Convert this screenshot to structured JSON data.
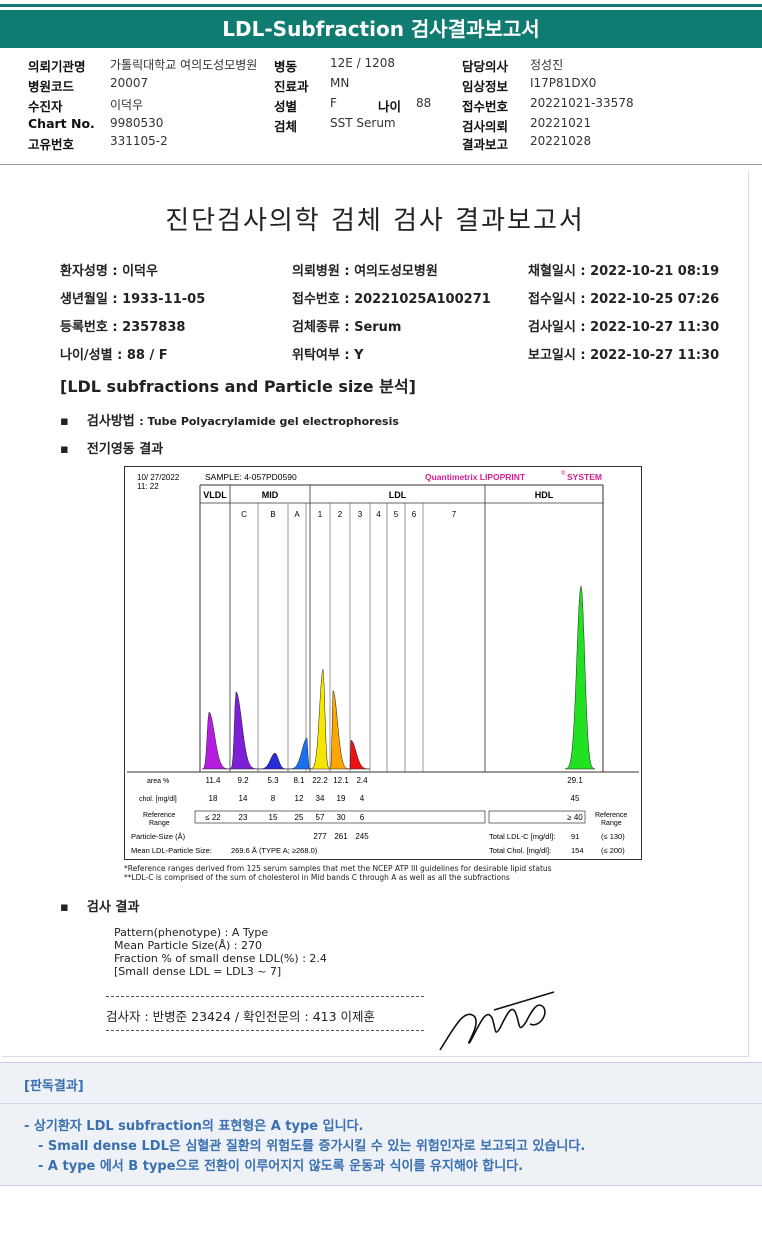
{
  "header": {
    "title": "LDL-Subfraction 검사결과보고서"
  },
  "info": {
    "rows": [
      [
        {
          "k": "의뢰기관명",
          "v": "가톨릭대학교 여의도성모병원"
        },
        {
          "k": "병동",
          "v": "12E / 1208"
        },
        {
          "k": "담당의사",
          "v": "정성진"
        }
      ],
      [
        {
          "k": "병원코드",
          "v": "20007"
        },
        {
          "k": "진료과",
          "v": "MN"
        },
        {
          "k": "임상정보",
          "v": "I17P81DX0"
        }
      ],
      [
        {
          "k": "수진자",
          "v": "이덕우"
        },
        {
          "k": "성별",
          "v": "F"
        },
        {
          "k": "접수번호",
          "v": "20221021-33578"
        }
      ],
      [
        {
          "k": "Chart No.",
          "v": "9980530"
        },
        {
          "k": "검체",
          "v": "SST Serum"
        },
        {
          "k": "검사의뢰",
          "v": "20221021"
        }
      ],
      [
        {
          "k": "고유번호",
          "v": "331105-2"
        },
        {
          "k": "",
          "v": ""
        },
        {
          "k": "결과보고",
          "v": "20221028"
        }
      ]
    ],
    "age_label": "나이",
    "age_value": "88"
  },
  "report": {
    "title": "진단검사의학 검체 검사 결과보고서",
    "fields": [
      [
        "환자성명 : 이덕우",
        "의뢰병원 : 여의도성모병원",
        "채혈일시 : 2022-10-21 08:19"
      ],
      [
        "생년월일 : 1933-11-05",
        "접수번호 : 20221025A100271",
        "접수일시 : 2022-10-25 07:26"
      ],
      [
        "등록번호 : 2357838",
        "검체종류 : Serum",
        "검사일시 : 2022-10-27 11:30"
      ],
      [
        "나이/성별 : 88 / F",
        "위탁여부 : Y",
        "보고일시 : 2022-10-27 11:30"
      ]
    ],
    "section_title": "[LDL subfractions and Particle size 분석]",
    "method_label": "검사방법",
    "method_value": ": Tube Polyacrylamide gel electrophoresis",
    "electro_label": "전기영동 결과",
    "result_label": "검사 결과",
    "results": [
      "Pattern(phenotype) : A Type",
      "Mean Particle Size(Å) : 270",
      "Fraction % of small dense LDL(%) : 2.4",
      "[Small dense LDL = LDL3 ~ 7]"
    ],
    "signoff": "검사자 : 반병준  23424  /  확인전문의 : 413  이제훈"
  },
  "chart_data": {
    "type": "area",
    "date": "10/ 27/2022",
    "time": "11: 22",
    "sample": "SAMPLE:   4-057PD0590",
    "brand": "Quantimetrix LIPOPRINT",
    "brand_mark": "®",
    "brand_suffix": " SYSTEM",
    "bands": [
      "VLDL",
      "C",
      "B",
      "A",
      "1",
      "2",
      "3",
      "4",
      "5",
      "6",
      "7"
    ],
    "groups": {
      "vldl": "VLDL",
      "mid": "MID",
      "ldl": "LDL",
      "hdl": "HDL"
    },
    "area_pct": {
      "VLDL": 11.4,
      "C": 9.2,
      "B": 5.3,
      "A": 8.1,
      "1": 22.2,
      "2": 12.1,
      "3": 2.4,
      "HDL": 29.1
    },
    "chol_mg_dl": {
      "VLDL": 18,
      "C": 14,
      "B": 8,
      "A": 12,
      "1": 34,
      "2": 19,
      "3": 4,
      "HDL": 45
    },
    "reference": {
      "VLDL": "≤ 22",
      "C": "23",
      "B": "15",
      "A": "25",
      "1": "57",
      "2": "30",
      "3": "6",
      "HDL": "≥ 40"
    },
    "particle_size": {
      "1": "277",
      "2": "261",
      "3": "245"
    },
    "total_ldl_c": "91",
    "total_ldl_c_ref": "(≤ 130)",
    "total_chol": "154",
    "total_chol_ref": "(≤ 200)",
    "mean_ldl_particle_size": "269.6 Å  (TYPE A; ≥268.0)",
    "labels": {
      "area": "area %",
      "chol": "chol. [mg/dl]",
      "ref": "Reference\nRange",
      "ps": "Particle-Size (Å)",
      "mean": "Mean LDL-Particle Size:",
      "tldl": "Total LDL-C [mg/dl]:",
      "tchol": "Total Chol. [mg/dl]:",
      "ref_right": "Reference\nRange"
    },
    "footnote1": "*Reference ranges derived from 125 serum samples that met the NCEP ATP III guidelines for desirable lipid status",
    "footnote2": "**LDL-C is comprised of the sum of cholesterol in Mid bands C through A as well as all the subfractions",
    "colors": {
      "VLDL": "#b51ee0",
      "C": "#7d1fd6",
      "B": "#2a2cd8",
      "A": "#1a6ff0",
      "1": "#f5e600",
      "2": "#ffa500",
      "3": "#ee1111",
      "HDL": "#22e022"
    }
  },
  "bottom": {
    "title": "[판독결과]",
    "lines": [
      "- 상기환자 LDL subfraction의 표현형은 A type 입니다.",
      "-  Small dense LDL은 심혈관 질환의 위험도를 증가시킬 수 있는 위험인자로 보고되고 있습니다.",
      "-  A type 에서 B type으로 전환이 이루어지지 않도록 운동과 식이를 유지해야 합니다."
    ]
  }
}
